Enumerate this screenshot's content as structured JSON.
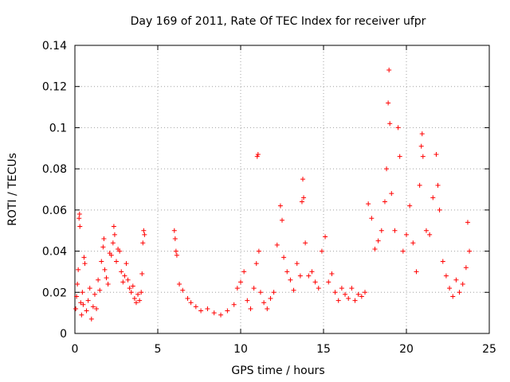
{
  "chart_data": {
    "type": "scatter",
    "title": "Day 169 of 2011, Rate Of TEC Index for receiver ufpr",
    "xlabel": "GPS time / hours",
    "ylabel": "ROTI / TECUs",
    "xlim": [
      0,
      25
    ],
    "ylim": [
      0,
      0.14
    ],
    "x_ticks": [
      0,
      5,
      10,
      15,
      20,
      25
    ],
    "x_tick_labels": [
      "0",
      "5",
      "10",
      "15",
      "20",
      "25"
    ],
    "y_ticks": [
      0,
      0.02,
      0.04,
      0.06,
      0.08,
      0.1,
      0.12,
      0.14
    ],
    "y_tick_labels": [
      "0",
      "0.02",
      "0.04",
      "0.06",
      "0.08",
      "0.1",
      "0.12",
      "0.14"
    ],
    "grid": true,
    "marker": "plus",
    "color": "#ff0000",
    "series": [
      {
        "points": [
          [
            0.05,
            0.012
          ],
          [
            0.1,
            0.018
          ],
          [
            0.15,
            0.024
          ],
          [
            0.2,
            0.031
          ],
          [
            0.25,
            0.056
          ],
          [
            0.28,
            0.058
          ],
          [
            0.3,
            0.052
          ],
          [
            0.35,
            0.015
          ],
          [
            0.4,
            0.009
          ],
          [
            0.45,
            0.02
          ],
          [
            0.5,
            0.014
          ],
          [
            0.55,
            0.037
          ],
          [
            0.6,
            0.034
          ],
          [
            0.7,
            0.011
          ],
          [
            0.8,
            0.016
          ],
          [
            0.9,
            0.022
          ],
          [
            1.0,
            0.007
          ],
          [
            1.1,
            0.013
          ],
          [
            1.2,
            0.019
          ],
          [
            1.3,
            0.012
          ],
          [
            1.4,
            0.026
          ],
          [
            1.5,
            0.021
          ],
          [
            1.6,
            0.035
          ],
          [
            1.7,
            0.042
          ],
          [
            1.75,
            0.046
          ],
          [
            1.8,
            0.031
          ],
          [
            1.9,
            0.027
          ],
          [
            2.0,
            0.024
          ],
          [
            2.1,
            0.039
          ],
          [
            2.2,
            0.038
          ],
          [
            2.3,
            0.044
          ],
          [
            2.35,
            0.052
          ],
          [
            2.4,
            0.048
          ],
          [
            2.5,
            0.035
          ],
          [
            2.6,
            0.041
          ],
          [
            2.7,
            0.04
          ],
          [
            2.8,
            0.03
          ],
          [
            2.9,
            0.025
          ],
          [
            3.0,
            0.028
          ],
          [
            3.1,
            0.034
          ],
          [
            3.2,
            0.026
          ],
          [
            3.3,
            0.022
          ],
          [
            3.4,
            0.02
          ],
          [
            3.5,
            0.023
          ],
          [
            3.6,
            0.017
          ],
          [
            3.7,
            0.015
          ],
          [
            3.8,
            0.019
          ],
          [
            3.9,
            0.016
          ],
          [
            4.0,
            0.02
          ],
          [
            4.05,
            0.029
          ],
          [
            4.1,
            0.044
          ],
          [
            4.15,
            0.05
          ],
          [
            4.2,
            0.048
          ],
          [
            6.0,
            0.05
          ],
          [
            6.05,
            0.046
          ],
          [
            6.1,
            0.04
          ],
          [
            6.15,
            0.038
          ],
          [
            6.3,
            0.024
          ],
          [
            6.5,
            0.021
          ],
          [
            6.8,
            0.017
          ],
          [
            7.0,
            0.015
          ],
          [
            7.3,
            0.013
          ],
          [
            7.6,
            0.011
          ],
          [
            8.0,
            0.012
          ],
          [
            8.4,
            0.01
          ],
          [
            8.8,
            0.009
          ],
          [
            9.2,
            0.011
          ],
          [
            9.6,
            0.014
          ],
          [
            9.8,
            0.022
          ],
          [
            10.0,
            0.025
          ],
          [
            10.2,
            0.03
          ],
          [
            10.4,
            0.016
          ],
          [
            10.6,
            0.012
          ],
          [
            10.8,
            0.022
          ],
          [
            10.95,
            0.034
          ],
          [
            11.0,
            0.086
          ],
          [
            11.05,
            0.087
          ],
          [
            11.1,
            0.04
          ],
          [
            11.2,
            0.02
          ],
          [
            11.4,
            0.015
          ],
          [
            11.6,
            0.012
          ],
          [
            11.8,
            0.017
          ],
          [
            12.0,
            0.02
          ],
          [
            12.2,
            0.043
          ],
          [
            12.4,
            0.062
          ],
          [
            12.5,
            0.055
          ],
          [
            12.6,
            0.037
          ],
          [
            12.8,
            0.03
          ],
          [
            13.0,
            0.026
          ],
          [
            13.2,
            0.021
          ],
          [
            13.4,
            0.034
          ],
          [
            13.6,
            0.028
          ],
          [
            13.7,
            0.064
          ],
          [
            13.75,
            0.075
          ],
          [
            13.8,
            0.066
          ],
          [
            13.9,
            0.044
          ],
          [
            14.1,
            0.028
          ],
          [
            14.3,
            0.03
          ],
          [
            14.5,
            0.025
          ],
          [
            14.7,
            0.022
          ],
          [
            14.9,
            0.04
          ],
          [
            15.1,
            0.047
          ],
          [
            15.3,
            0.025
          ],
          [
            15.5,
            0.029
          ],
          [
            15.7,
            0.02
          ],
          [
            15.9,
            0.016
          ],
          [
            16.1,
            0.022
          ],
          [
            16.3,
            0.019
          ],
          [
            16.5,
            0.017
          ],
          [
            16.7,
            0.022
          ],
          [
            16.9,
            0.016
          ],
          [
            17.1,
            0.019
          ],
          [
            17.3,
            0.018
          ],
          [
            17.5,
            0.02
          ],
          [
            17.7,
            0.063
          ],
          [
            17.9,
            0.056
          ],
          [
            18.1,
            0.041
          ],
          [
            18.3,
            0.045
          ],
          [
            18.5,
            0.05
          ],
          [
            18.7,
            0.064
          ],
          [
            18.8,
            0.08
          ],
          [
            18.9,
            0.112
          ],
          [
            18.95,
            0.128
          ],
          [
            19.0,
            0.102
          ],
          [
            19.1,
            0.068
          ],
          [
            19.3,
            0.05
          ],
          [
            19.5,
            0.1
          ],
          [
            19.6,
            0.086
          ],
          [
            19.8,
            0.04
          ],
          [
            20.0,
            0.048
          ],
          [
            20.2,
            0.062
          ],
          [
            20.4,
            0.044
          ],
          [
            20.6,
            0.03
          ],
          [
            20.8,
            0.072
          ],
          [
            20.9,
            0.091
          ],
          [
            20.95,
            0.097
          ],
          [
            21.0,
            0.086
          ],
          [
            21.2,
            0.05
          ],
          [
            21.4,
            0.048
          ],
          [
            21.6,
            0.066
          ],
          [
            21.8,
            0.087
          ],
          [
            21.9,
            0.072
          ],
          [
            22.0,
            0.06
          ],
          [
            22.2,
            0.035
          ],
          [
            22.4,
            0.028
          ],
          [
            22.6,
            0.022
          ],
          [
            22.8,
            0.018
          ],
          [
            23.0,
            0.026
          ],
          [
            23.2,
            0.02
          ],
          [
            23.4,
            0.024
          ],
          [
            23.6,
            0.032
          ],
          [
            23.7,
            0.054
          ],
          [
            23.8,
            0.04
          ]
        ]
      }
    ]
  }
}
